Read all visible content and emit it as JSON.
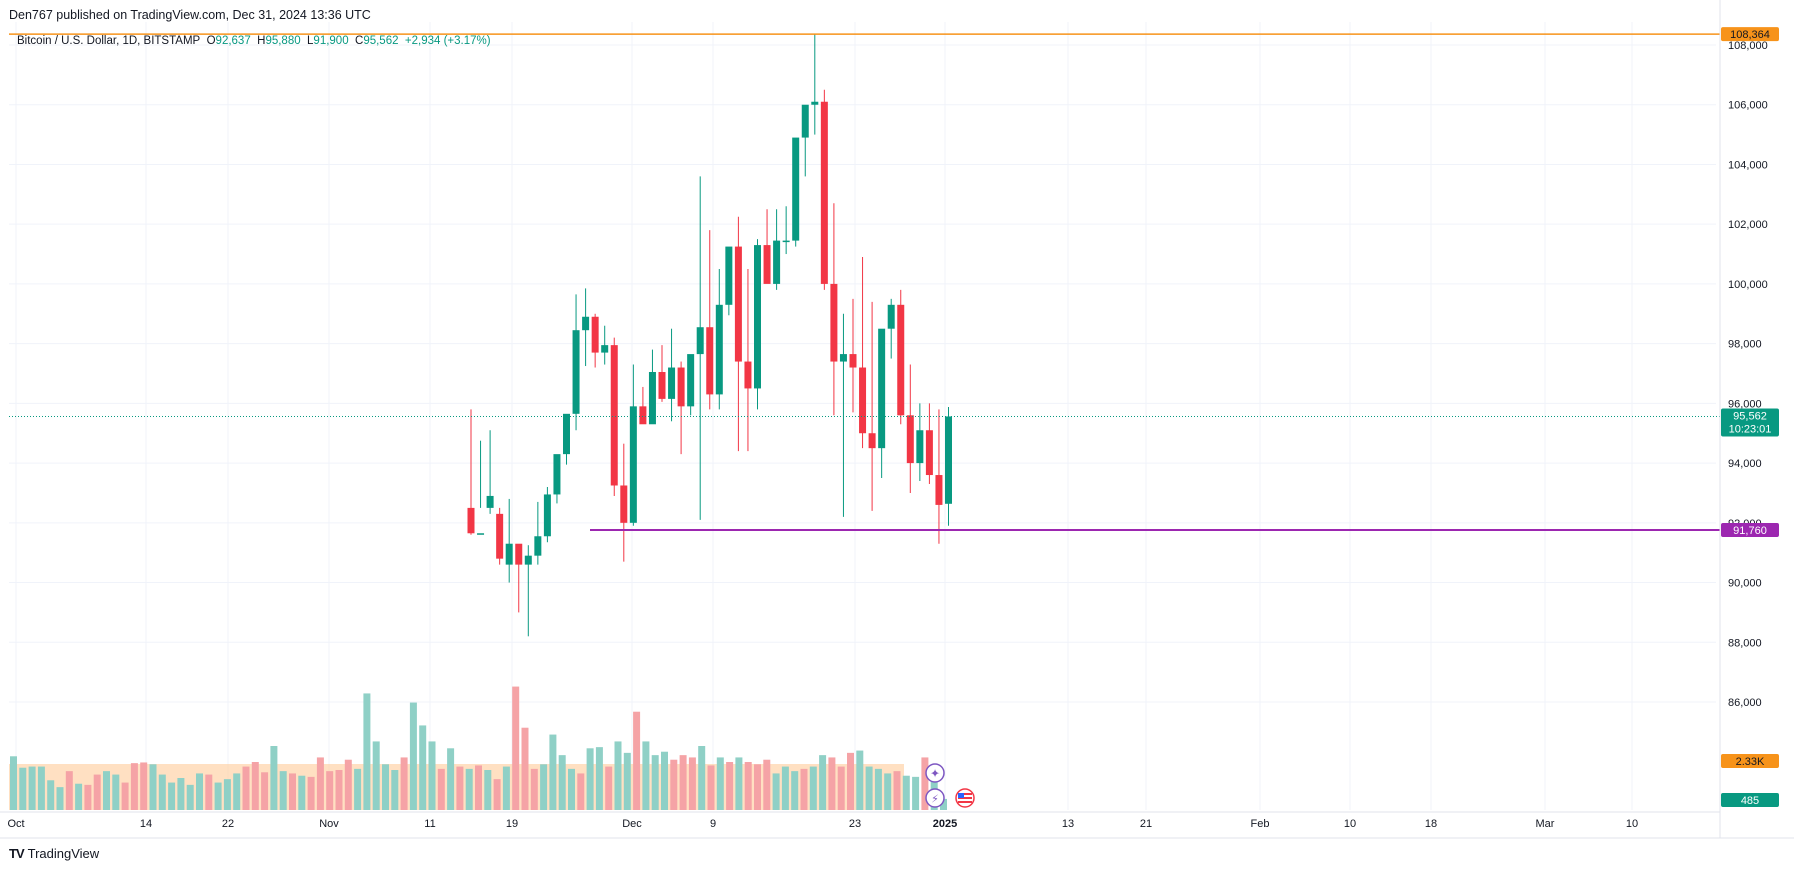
{
  "header": {
    "publisher": "Den767 published on TradingView.com, Dec 31, 2024 13:36 UTC"
  },
  "legend": {
    "symbol": "Bitcoin / U.S. Dollar, 1D, BITSTAMP",
    "o_label": "O",
    "o": "92,637",
    "h_label": "H",
    "h": "95,880",
    "l_label": "L",
    "l": "91,900",
    "c_label": "C",
    "c": "95,562",
    "change": "+2,934 (+3.17%)"
  },
  "footer": {
    "brand": "TradingView",
    "logo": "TV"
  },
  "colors": {
    "up": "#089981",
    "down": "#f23645",
    "up_vol": "#8fd0c6",
    "down_vol": "#f5a3a6",
    "ath_line": "#f7931a",
    "support_line": "#9c27b0",
    "ma_fill": "#ffcc99",
    "grid": "#f0f3fa"
  },
  "chart_data": {
    "type": "candlestick",
    "y_axis": {
      "ticks": [
        "86,000",
        "88,000",
        "90,000",
        "92,000",
        "94,000",
        "96,000",
        "98,000",
        "100,000",
        "102,000",
        "104,000",
        "106,000",
        "108,000"
      ],
      "tick_values": [
        86000,
        88000,
        90000,
        92000,
        94000,
        96000,
        98000,
        100000,
        102000,
        104000,
        106000,
        108000
      ],
      "range": [
        83800,
        108700
      ]
    },
    "x_axis": {
      "ticks": [
        "Oct",
        "14",
        "22",
        "Nov",
        "11",
        "19",
        "Dec",
        "9",
        "23",
        "2025",
        "13",
        "21",
        "Feb",
        "10",
        "18",
        "Mar",
        "10"
      ]
    },
    "price_labels": {
      "ath": "108,364",
      "ath_value": 108364,
      "last": "95,562",
      "last_value": 95562,
      "countdown": "10:23:01",
      "support": "91,760",
      "support_value": 91760,
      "volume_ma": "2.33K",
      "volume": "485"
    },
    "candles": [
      [
        92500,
        95800,
        91650,
        91600
      ],
      [
        91600,
        94750,
        91650,
        92500
      ],
      [
        92500,
        95100,
        92900,
        92300
      ],
      [
        92300,
        92500,
        90800,
        90600
      ],
      [
        90600,
        92800,
        91300,
        90000
      ],
      [
        91300,
        91250,
        90600,
        89000
      ],
      [
        90600,
        91250,
        90900,
        88200
      ],
      [
        90900,
        92700,
        91550,
        90600
      ],
      [
        91550,
        93200,
        92950,
        91350
      ],
      [
        92950,
        93700,
        94300,
        92650
      ],
      [
        94300,
        94700,
        95650,
        93950
      ],
      [
        95650,
        99650,
        98450,
        95100
      ],
      [
        98450,
        99850,
        98900,
        97250
      ],
      [
        98900,
        99000,
        97700,
        97200
      ],
      [
        97700,
        98600,
        97950,
        97300
      ],
      [
        97950,
        98200,
        93250,
        92900
      ],
      [
        93250,
        94650,
        92000,
        90700
      ],
      [
        92000,
        97300,
        95900,
        91900
      ],
      [
        95900,
        96550,
        95300,
        95500
      ],
      [
        95300,
        97800,
        97050,
        96000
      ],
      [
        97050,
        97950,
        96150,
        96050
      ],
      [
        96150,
        98500,
        97200,
        95400
      ],
      [
        97200,
        97400,
        95900,
        94300
      ],
      [
        95900,
        97000,
        97650,
        95600
      ],
      [
        97650,
        103600,
        98550,
        92100
      ],
      [
        98550,
        101800,
        96300,
        95800
      ],
      [
        96300,
        100500,
        99300,
        95800
      ],
      [
        99300,
        101000,
        101250,
        98950
      ],
      [
        101250,
        102250,
        97400,
        94400
      ],
      [
        97400,
        100500,
        96500,
        94400
      ],
      [
        96500,
        101500,
        101300,
        95800
      ],
      [
        101300,
        102500,
        100000,
        100100
      ],
      [
        100000,
        102500,
        101450,
        99800
      ],
      [
        101450,
        102600,
        101450,
        101000
      ],
      [
        101450,
        104200,
        104900,
        101250
      ],
      [
        104900,
        105000,
        106000,
        103600
      ],
      [
        106000,
        108364,
        106100,
        105000
      ],
      [
        106100,
        106500,
        100000,
        99800
      ],
      [
        100000,
        102700,
        97400,
        95600
      ],
      [
        97400,
        99000,
        97650,
        92200
      ],
      [
        97650,
        99500,
        97200,
        95700
      ],
      [
        97200,
        100900,
        95000,
        94500
      ],
      [
        95000,
        99400,
        94500,
        92400
      ],
      [
        94500,
        98000,
        98500,
        93500
      ],
      [
        98500,
        99500,
        99300,
        97500
      ],
      [
        99300,
        99800,
        95600,
        95300
      ],
      [
        95600,
        97300,
        94000,
        93000
      ],
      [
        94000,
        96000,
        95100,
        93400
      ],
      [
        95100,
        96000,
        93600,
        93300
      ],
      [
        93600,
        95800,
        92600,
        91300
      ],
      [
        92637,
        95880,
        95562,
        91900
      ]
    ],
    "volumes": [
      [
        2350,
        1
      ],
      [
        1850,
        1
      ],
      [
        1900,
        1
      ],
      [
        1900,
        1
      ],
      [
        1300,
        1
      ],
      [
        1000,
        1
      ],
      [
        1700,
        0
      ],
      [
        1150,
        1
      ],
      [
        1100,
        0
      ],
      [
        1550,
        0
      ],
      [
        1700,
        1
      ],
      [
        1550,
        1
      ],
      [
        1200,
        0
      ],
      [
        2050,
        0
      ],
      [
        2080,
        0
      ],
      [
        2000,
        1
      ],
      [
        1550,
        1
      ],
      [
        1200,
        1
      ],
      [
        1400,
        1
      ],
      [
        1100,
        1
      ],
      [
        1600,
        1
      ],
      [
        1550,
        0
      ],
      [
        1200,
        1
      ],
      [
        1350,
        1
      ],
      [
        1600,
        1
      ],
      [
        1900,
        0
      ],
      [
        2100,
        0
      ],
      [
        1650,
        0
      ],
      [
        2800,
        1
      ],
      [
        1700,
        1
      ],
      [
        1600,
        0
      ],
      [
        1500,
        1
      ],
      [
        1450,
        0
      ],
      [
        2300,
        0
      ],
      [
        1700,
        0
      ],
      [
        1750,
        0
      ],
      [
        2200,
        0
      ],
      [
        1800,
        1
      ],
      [
        5100,
        1
      ],
      [
        3000,
        1
      ],
      [
        2000,
        1
      ],
      [
        1750,
        1
      ],
      [
        2300,
        0
      ],
      [
        4700,
        1
      ],
      [
        3700,
        1
      ],
      [
        3000,
        1
      ],
      [
        1800,
        0
      ],
      [
        2700,
        1
      ],
      [
        1900,
        0
      ],
      [
        1800,
        1
      ],
      [
        1950,
        0
      ],
      [
        1750,
        1
      ],
      [
        1350,
        0
      ],
      [
        1900,
        1
      ],
      [
        5400,
        0
      ],
      [
        3600,
        0
      ],
      [
        1800,
        0
      ],
      [
        2000,
        1
      ],
      [
        3300,
        1
      ],
      [
        2400,
        1
      ],
      [
        1800,
        1
      ],
      [
        1600,
        0
      ],
      [
        2700,
        1
      ],
      [
        2750,
        1
      ],
      [
        1900,
        0
      ],
      [
        3000,
        1
      ],
      [
        2500,
        1
      ],
      [
        4300,
        0
      ],
      [
        3000,
        1
      ],
      [
        2400,
        1
      ],
      [
        2550,
        1
      ],
      [
        2200,
        0
      ],
      [
        2400,
        0
      ],
      [
        2300,
        0
      ],
      [
        2800,
        1
      ],
      [
        1950,
        0
      ],
      [
        2300,
        1
      ],
      [
        2100,
        0
      ],
      [
        2300,
        1
      ],
      [
        2100,
        0
      ],
      [
        2000,
        0
      ],
      [
        2200,
        0
      ],
      [
        1600,
        1
      ],
      [
        1900,
        1
      ],
      [
        1700,
        1
      ],
      [
        1800,
        0
      ],
      [
        1900,
        1
      ],
      [
        2400,
        1
      ],
      [
        2300,
        0
      ],
      [
        1900,
        0
      ],
      [
        2500,
        0
      ],
      [
        2600,
        1
      ],
      [
        1900,
        1
      ],
      [
        1800,
        1
      ],
      [
        1600,
        1
      ],
      [
        1700,
        0
      ],
      [
        1500,
        1
      ],
      [
        1450,
        1
      ],
      [
        2300,
        0
      ],
      [
        1400,
        1
      ],
      [
        485,
        1
      ]
    ],
    "volume_scale_max": 7000,
    "last_volume": 485,
    "support_level": 91760,
    "ath_level": 108364,
    "grid": true
  }
}
